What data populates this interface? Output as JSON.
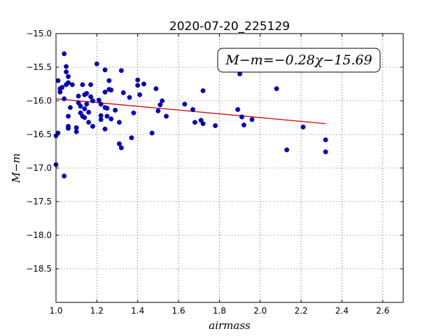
{
  "chart_data": {
    "type": "scatter",
    "title": "2020-07-20_225129",
    "xlabel": "airmass",
    "ylabel": "M−m",
    "xlim": [
      1.0,
      2.7
    ],
    "ylim": [
      -19.0,
      -15.0
    ],
    "y_inverted": true,
    "grid": true,
    "x_ticks": [
      1.0,
      1.2,
      1.4,
      1.6,
      1.8,
      2.0,
      2.2,
      2.4,
      2.6
    ],
    "x_tick_labels": [
      "1.0",
      "1.2",
      "1.4",
      "1.6",
      "1.8",
      "2.0",
      "2.2",
      "2.4",
      "2.6"
    ],
    "y_ticks": [
      -15.0,
      -15.5,
      -16.0,
      -16.5,
      -17.0,
      -17.5,
      -18.0,
      -18.5
    ],
    "y_tick_labels": [
      "−15.0",
      "−15.5",
      "−16.0",
      "−16.5",
      "−17.0",
      "−17.5",
      "−18.0",
      "−18.5"
    ],
    "annotation": "M−m=−0.28χ−15.69",
    "colors": {
      "points": "#0000cc",
      "fit": "#cc0000"
    },
    "fit": {
      "slope": -0.28,
      "intercept": -15.69,
      "x_range": [
        1.0,
        2.32
      ]
    },
    "points": [
      [
        1.0,
        -16.52
      ],
      [
        1.0,
        -16.95
      ],
      [
        1.01,
        -15.7
      ],
      [
        1.01,
        -16.48
      ],
      [
        1.02,
        -15.87
      ],
      [
        1.02,
        -15.82
      ],
      [
        1.03,
        -15.8
      ],
      [
        1.04,
        -15.3
      ],
      [
        1.04,
        -15.97
      ],
      [
        1.04,
        -17.12
      ],
      [
        1.05,
        -15.49
      ],
      [
        1.05,
        -15.57
      ],
      [
        1.05,
        -15.76
      ],
      [
        1.06,
        -15.64
      ],
      [
        1.06,
        -15.73
      ],
      [
        1.06,
        -16.23
      ],
      [
        1.06,
        -16.38
      ],
      [
        1.06,
        -16.41
      ],
      [
        1.07,
        -16.1
      ],
      [
        1.08,
        -15.76
      ],
      [
        1.1,
        -16.4
      ],
      [
        1.1,
        -16.46
      ],
      [
        1.11,
        -15.93
      ],
      [
        1.11,
        -16.03
      ],
      [
        1.12,
        -16.08
      ],
      [
        1.12,
        -16.18
      ],
      [
        1.13,
        -16.23
      ],
      [
        1.13,
        -15.76
      ],
      [
        1.14,
        -16.25
      ],
      [
        1.14,
        -16.12
      ],
      [
        1.14,
        -15.91
      ],
      [
        1.15,
        -16.05
      ],
      [
        1.15,
        -15.89
      ],
      [
        1.16,
        -16.17
      ],
      [
        1.16,
        -16.32
      ],
      [
        1.17,
        -15.76
      ],
      [
        1.17,
        -15.94
      ],
      [
        1.18,
        -16.0
      ],
      [
        1.18,
        -16.38
      ],
      [
        1.2,
        -15.45
      ],
      [
        1.21,
        -15.99
      ],
      [
        1.22,
        -16.05
      ],
      [
        1.22,
        -16.22
      ],
      [
        1.22,
        -16.28
      ],
      [
        1.24,
        -15.87
      ],
      [
        1.24,
        -16.42
      ],
      [
        1.24,
        -15.54
      ],
      [
        1.24,
        -16.1
      ],
      [
        1.25,
        -16.11
      ],
      [
        1.25,
        -16.23
      ],
      [
        1.26,
        -15.83
      ],
      [
        1.26,
        -15.7
      ],
      [
        1.27,
        -16.27
      ],
      [
        1.27,
        -15.84
      ],
      [
        1.29,
        -16.14
      ],
      [
        1.31,
        -16.32
      ],
      [
        1.31,
        -16.64
      ],
      [
        1.32,
        -16.7
      ],
      [
        1.32,
        -15.55
      ],
      [
        1.33,
        -15.88
      ],
      [
        1.36,
        -15.95
      ],
      [
        1.37,
        -16.55
      ],
      [
        1.38,
        -16.18
      ],
      [
        1.4,
        -15.69
      ],
      [
        1.4,
        -15.77
      ],
      [
        1.41,
        -15.91
      ],
      [
        1.43,
        -15.75
      ],
      [
        1.47,
        -16.48
      ],
      [
        1.49,
        -15.82
      ],
      [
        1.5,
        -16.15
      ],
      [
        1.51,
        -16.06
      ],
      [
        1.52,
        -16.0
      ],
      [
        1.54,
        -16.23
      ],
      [
        1.63,
        -16.05
      ],
      [
        1.67,
        -16.13
      ],
      [
        1.68,
        -16.32
      ],
      [
        1.71,
        -16.29
      ],
      [
        1.72,
        -15.85
      ],
      [
        1.72,
        -16.34
      ],
      [
        1.78,
        -16.37
      ],
      [
        1.89,
        -16.13
      ],
      [
        1.9,
        -15.6
      ],
      [
        1.91,
        -16.24
      ],
      [
        1.92,
        -16.36
      ],
      [
        1.96,
        -16.28
      ],
      [
        2.08,
        -15.82
      ],
      [
        2.13,
        -16.73
      ],
      [
        2.21,
        -16.39
      ],
      [
        2.32,
        -16.58
      ],
      [
        2.32,
        -16.76
      ]
    ]
  }
}
